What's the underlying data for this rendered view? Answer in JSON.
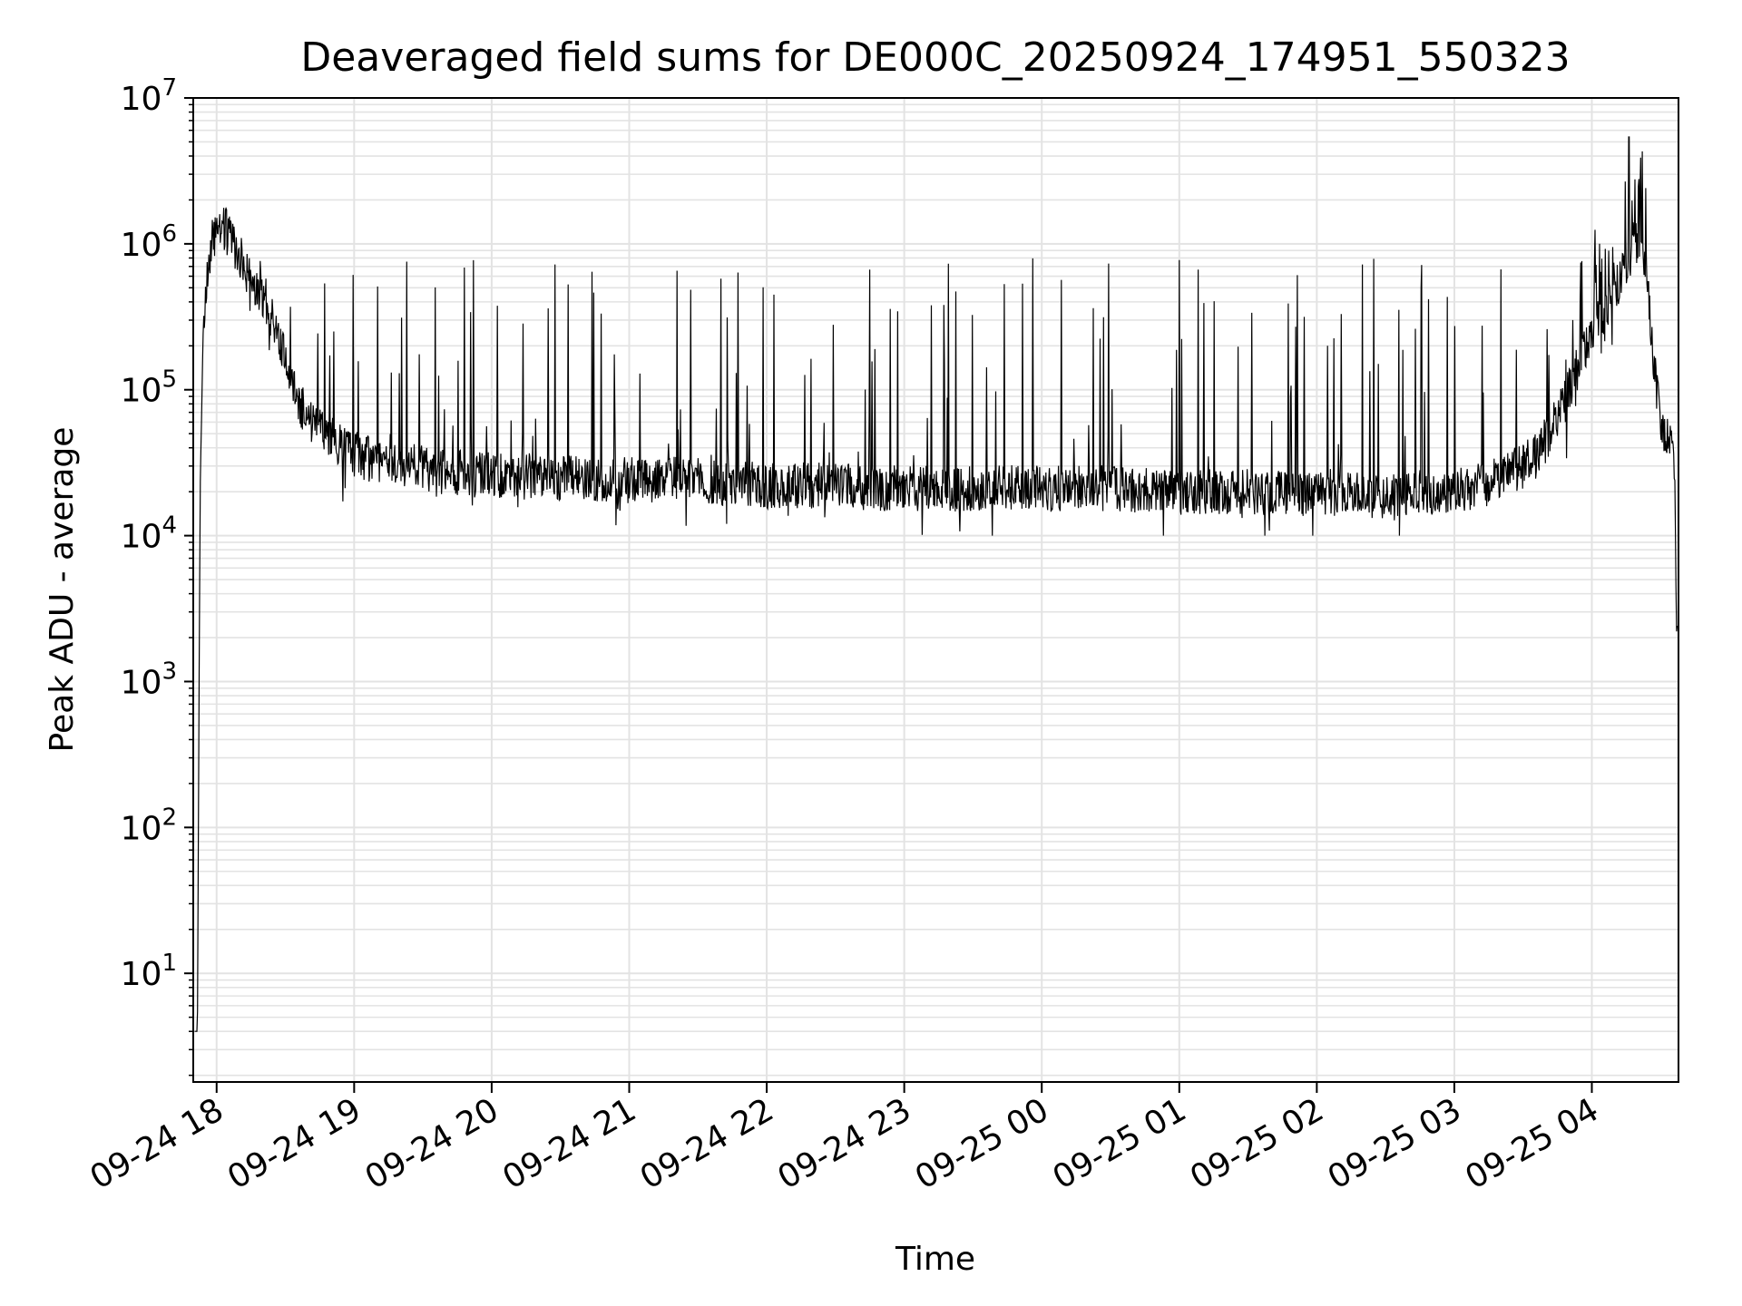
{
  "chart_data": {
    "type": "line",
    "title": "Deaveraged field sums for DE000C_20250924_174951_550323",
    "xlabel": "Time",
    "ylabel": "Peak ADU - average",
    "yscale": "log",
    "grid": true,
    "ylim": [
      1.8,
      10000000
    ],
    "xlim_hours": [
      17.83,
      28.63
    ],
    "x_ticks": [
      {
        "hour": 18,
        "label": "09-24 18"
      },
      {
        "hour": 19,
        "label": "09-24 19"
      },
      {
        "hour": 20,
        "label": "09-24 20"
      },
      {
        "hour": 21,
        "label": "09-24 21"
      },
      {
        "hour": 22,
        "label": "09-24 22"
      },
      {
        "hour": 23,
        "label": "09-24 23"
      },
      {
        "hour": 24,
        "label": "09-25 00"
      },
      {
        "hour": 25,
        "label": "09-25 01"
      },
      {
        "hour": 26,
        "label": "09-25 02"
      },
      {
        "hour": 27,
        "label": "09-25 03"
      },
      {
        "hour": 28,
        "label": "09-25 04"
      }
    ],
    "y_ticks": [
      {
        "value": 10,
        "base": "10",
        "exp": "1"
      },
      {
        "value": 100,
        "base": "10",
        "exp": "2"
      },
      {
        "value": 1000,
        "base": "10",
        "exp": "3"
      },
      {
        "value": 10000,
        "base": "10",
        "exp": "4"
      },
      {
        "value": 100000,
        "base": "10",
        "exp": "5"
      },
      {
        "value": 1000000,
        "base": "10",
        "exp": "6"
      },
      {
        "value": 10000000,
        "base": "10",
        "exp": "7"
      }
    ],
    "series": [
      {
        "name": "Deaveraged field sum",
        "color": "#000000",
        "hours": [
          17.84,
          17.86,
          17.87,
          17.88,
          17.9,
          17.93,
          17.96,
          18.0,
          18.05,
          18.1,
          18.2,
          18.3,
          18.4,
          18.5,
          18.6,
          18.7,
          18.8,
          18.9,
          19.0,
          19.2,
          19.4,
          19.6,
          19.8,
          20.0,
          20.5,
          21.0,
          21.5,
          22.0,
          22.5,
          23.0,
          23.5,
          24.0,
          24.5,
          25.0,
          25.5,
          26.0,
          26.5,
          27.0,
          27.2,
          27.4,
          27.6,
          27.8,
          27.95,
          28.05,
          28.15,
          28.25,
          28.3,
          28.35,
          28.4,
          28.45,
          28.5,
          28.55,
          28.6,
          28.62
        ],
        "baseline": [
          4,
          4,
          300,
          20000,
          200000,
          600000,
          1000000,
          1200000,
          1300000,
          1100000,
          700000,
          500000,
          300000,
          180000,
          80000,
          60000,
          50000,
          40000,
          35000,
          33000,
          30000,
          28000,
          27000,
          26000,
          25000,
          24000,
          24000,
          22000,
          22000,
          21000,
          21000,
          21000,
          21000,
          20000,
          20000,
          19000,
          19000,
          20000,
          22000,
          26000,
          35000,
          80000,
          200000,
          300000,
          450000,
          700000,
          1000000,
          1100000,
          700000,
          150000,
          60000,
          50000,
          30000,
          1700
        ],
        "spike_peak": 800000,
        "max_spike": {
          "hour": 28.27,
          "value": 5400000
        },
        "min_dip": 10000
      }
    ]
  }
}
